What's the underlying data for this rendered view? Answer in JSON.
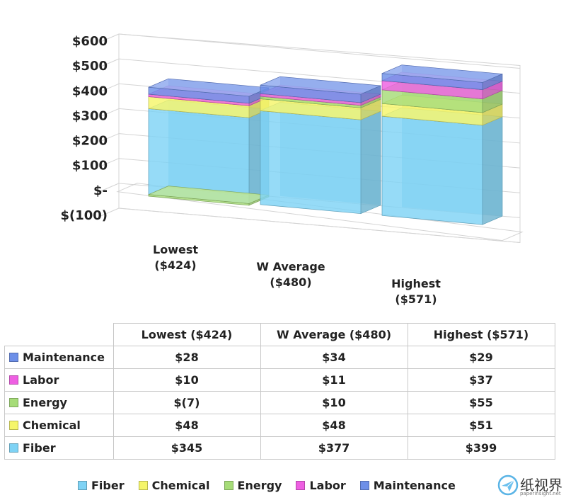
{
  "chart_data": {
    "type": "bar",
    "stacked": true,
    "three_d": true,
    "categories": [
      "Lowest ($424)",
      "W Average ($480)",
      "Highest ($571)"
    ],
    "category_lines": [
      [
        "Lowest",
        "($424)"
      ],
      [
        "W Average",
        "($480)"
      ],
      [
        "Highest",
        "($571)"
      ]
    ],
    "series": [
      {
        "name": "Fiber",
        "color": "#7fd3f5",
        "values": [
          345,
          377,
          399
        ],
        "labels": [
          "$345",
          "$377",
          "$399"
        ]
      },
      {
        "name": "Chemical",
        "color": "#f5f56a",
        "values": [
          48,
          48,
          51
        ],
        "labels": [
          "$48",
          "$48",
          "$51"
        ]
      },
      {
        "name": "Energy",
        "color": "#a6dc78",
        "values": [
          -7,
          10,
          55
        ],
        "labels": [
          "$(7)",
          "$10",
          "$55"
        ]
      },
      {
        "name": "Labor",
        "color": "#ee5fe2",
        "values": [
          10,
          11,
          37
        ],
        "labels": [
          "$10",
          "$11",
          "$37"
        ]
      },
      {
        "name": "Maintenance",
        "color": "#6d8fe8",
        "values": [
          28,
          34,
          29
        ],
        "labels": [
          "$28",
          "$34",
          "$29"
        ]
      }
    ],
    "ylim": [
      -100,
      600
    ],
    "yticks": [
      -100,
      0,
      100,
      200,
      300,
      400,
      500,
      600
    ],
    "ytick_labels": [
      "$(100)",
      "$-",
      "$100",
      "$200",
      "$300",
      "$400",
      "$500",
      "$600"
    ],
    "grid": true,
    "legend": "bottom",
    "data_table": true
  },
  "table": {
    "row_order": [
      "Maintenance",
      "Labor",
      "Energy",
      "Chemical",
      "Fiber"
    ]
  },
  "watermark": {
    "title": "纸视界",
    "site": "paperinsight.net",
    "icon": "paper-plane-icon"
  }
}
